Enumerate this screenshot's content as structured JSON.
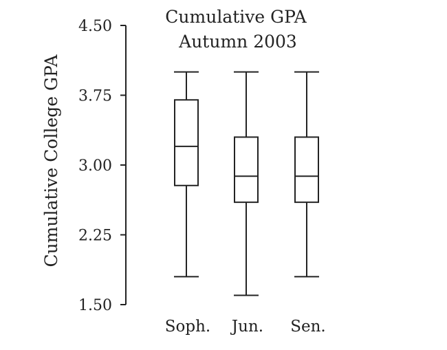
{
  "chart_data": {
    "type": "boxplot",
    "title": [
      "Cumulative GPA",
      "Autumn 2003"
    ],
    "ylabel": "Cumulative College GPA",
    "xlabel": "",
    "ylim": [
      1.5,
      4.5
    ],
    "yticks": [
      1.5,
      2.25,
      3.0,
      3.75,
      4.5
    ],
    "ytick_labels": [
      "1.50",
      "2.25",
      "3.00",
      "3.75",
      "4.50"
    ],
    "grid": false,
    "categories": [
      "Soph.",
      "Jun.",
      "Sen."
    ],
    "boxes": [
      {
        "label": "Soph.",
        "min": 1.8,
        "q1": 2.78,
        "median": 3.2,
        "q3": 3.7,
        "max": 4.0
      },
      {
        "label": "Jun.",
        "min": 1.6,
        "q1": 2.6,
        "median": 2.88,
        "q3": 3.3,
        "max": 4.0
      },
      {
        "label": "Sen.",
        "min": 1.8,
        "q1": 2.6,
        "median": 2.88,
        "q3": 3.3,
        "max": 4.0
      }
    ]
  }
}
